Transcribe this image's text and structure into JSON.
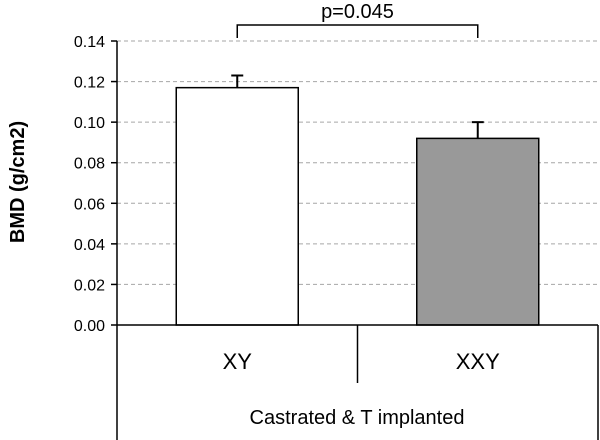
{
  "chart_data": {
    "type": "bar",
    "categories": [
      "XY",
      "XXY"
    ],
    "values": [
      0.117,
      0.092
    ],
    "errors": [
      0.006,
      0.008
    ],
    "colors": [
      "#ffffff",
      "#999999"
    ],
    "ylabel": "BMD (g/cm2)",
    "ylim": [
      0,
      0.14
    ],
    "yticks": [
      "0.00",
      "0.02",
      "0.04",
      "0.06",
      "0.08",
      "0.10",
      "0.12",
      "0.14"
    ],
    "grid": true,
    "group_label": "Castrated & T implanted",
    "significance": {
      "text": "p=0.045",
      "between": [
        "XY",
        "XXY"
      ]
    }
  }
}
